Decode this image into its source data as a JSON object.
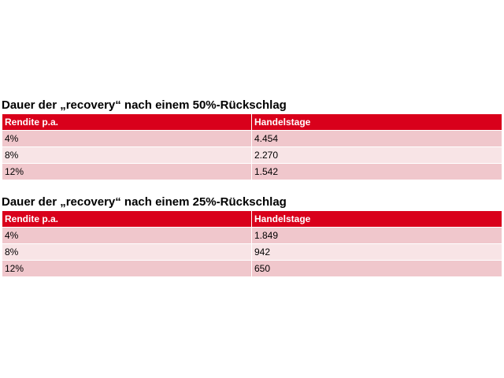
{
  "tables": [
    {
      "title": "Dauer der „recovery“ nach einem 50%-Rückschlag",
      "header": [
        "Rendite p.a.",
        "Handelstage"
      ],
      "rows": [
        [
          "4%",
          "4.454"
        ],
        [
          "8%",
          "2.270"
        ],
        [
          "12%",
          "1.542"
        ]
      ]
    },
    {
      "title": "Dauer der „recovery“ nach einem 25%-Rückschlag",
      "header": [
        "Rendite p.a.",
        "Handelstage"
      ],
      "rows": [
        [
          "4%",
          "1.849"
        ],
        [
          "8%",
          "942"
        ],
        [
          "12%",
          "650"
        ]
      ]
    }
  ]
}
